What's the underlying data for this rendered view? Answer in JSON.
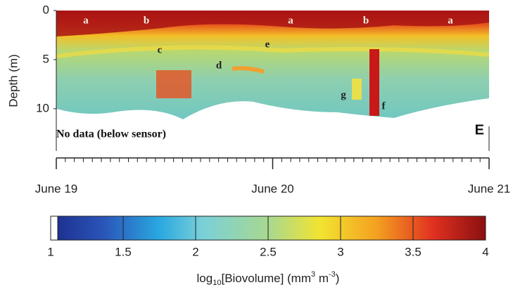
{
  "chart_data": {
    "type": "heatmap",
    "y_label": "Depth (m)",
    "ylim": [
      0,
      14.8
    ],
    "yticks": [
      0,
      5,
      10
    ],
    "xlim": [
      19,
      21
    ],
    "xticks": [
      {
        "value": 19,
        "label": "June 19"
      },
      {
        "value": 20,
        "label": "June 20"
      },
      {
        "value": 21,
        "label": "June 21"
      }
    ],
    "annotations": [
      "a",
      "b",
      "c",
      "e",
      "a",
      "b",
      "a",
      "d",
      "g",
      "f",
      "No data (below sensor)",
      "E"
    ],
    "colorbar": {
      "clim": [
        1,
        4
      ],
      "ticks": [
        1,
        1.5,
        2,
        2.5,
        3,
        3.5,
        4
      ],
      "label": [
        "log",
        "10",
        "[Biovolume] (mm",
        "3",
        " m",
        "-3",
        ")"
      ]
    }
  }
}
